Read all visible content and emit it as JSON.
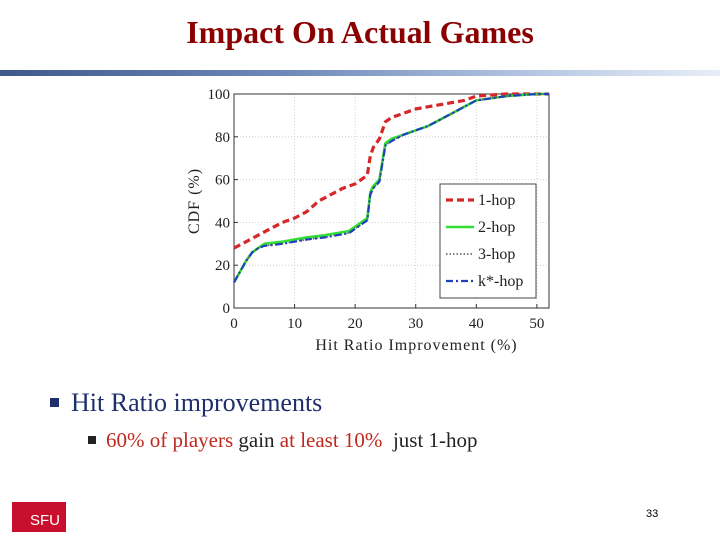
{
  "slide": {
    "title": "Impact On Actual Games",
    "bullet1": "Hit Ratio improvements",
    "bullet2": {
      "part1": "60% of players",
      "part2": " gain ",
      "part3": "at least 10%",
      "part4": "  just 1-hop"
    },
    "logo_text": "SFU",
    "page_number": "33"
  },
  "chart_data": {
    "type": "line",
    "title": "",
    "xlabel": "Hit Ratio Improvement (%)",
    "ylabel": "CDF (%)",
    "xlim": [
      0,
      52
    ],
    "ylim": [
      0,
      100
    ],
    "xticks": [
      0,
      10,
      20,
      30,
      40,
      50
    ],
    "yticks": [
      0,
      20,
      40,
      60,
      80,
      100
    ],
    "grid": true,
    "legend": "right",
    "series": [
      {
        "name": "1-hop",
        "color": "#d62728",
        "dash": "dashed",
        "x": [
          0,
          2,
          4,
          6,
          8,
          10,
          12,
          14,
          16,
          18,
          20,
          21,
          22,
          22.5,
          23,
          24,
          25,
          26,
          28,
          30,
          32,
          34,
          36,
          38,
          40,
          45,
          50,
          52
        ],
        "y": [
          28,
          31,
          34,
          37,
          40,
          42,
          45,
          50,
          53,
          56,
          58,
          60,
          62,
          71,
          75,
          79,
          87,
          89,
          91,
          93,
          94,
          95,
          96,
          97,
          99,
          100,
          100,
          100
        ]
      },
      {
        "name": "2-hop",
        "color": "#33dd33",
        "dash": "solid",
        "x": [
          0,
          1,
          2,
          3,
          4,
          5,
          8,
          10,
          12,
          15,
          17,
          19,
          20,
          21,
          22,
          22.5,
          23,
          24,
          25,
          26,
          28,
          30,
          32,
          34,
          36,
          38,
          40,
          45,
          50,
          52
        ],
        "y": [
          12,
          17,
          22,
          26,
          28,
          30,
          31,
          32,
          33,
          34,
          35,
          36,
          38,
          40,
          42,
          54,
          57,
          60,
          77,
          79,
          81,
          83,
          85,
          88,
          91,
          94,
          97,
          99,
          100,
          100
        ]
      },
      {
        "name": "3-hop",
        "color": "#555555",
        "dash": "dotted",
        "x": [
          0,
          1,
          2,
          3,
          4,
          5,
          8,
          10,
          12,
          15,
          17,
          19,
          20,
          21,
          22,
          22.5,
          23,
          24,
          25,
          26,
          28,
          30,
          32,
          34,
          36,
          38,
          40,
          45,
          50,
          52
        ],
        "y": [
          12,
          17,
          22,
          26,
          28,
          29,
          30,
          31,
          32,
          33,
          34,
          35,
          37,
          39,
          41,
          53,
          56,
          59,
          76,
          78,
          81,
          83,
          85,
          88,
          91,
          94,
          97,
          99,
          100,
          100
        ]
      },
      {
        "name": "k*-hop",
        "color": "#1f3fbf",
        "dash": "dashdot",
        "x": [
          0,
          1,
          2,
          3,
          4,
          5,
          8,
          10,
          12,
          15,
          17,
          19,
          20,
          21,
          22,
          22.5,
          23,
          24,
          25,
          26,
          28,
          30,
          32,
          34,
          36,
          38,
          40,
          45,
          50,
          52
        ],
        "y": [
          12,
          17,
          22,
          26,
          28,
          29,
          30,
          31,
          32,
          33,
          34,
          35,
          37,
          39,
          41,
          53,
          56,
          59,
          76,
          78,
          81,
          83,
          85,
          88,
          91,
          94,
          97,
          99,
          100,
          100
        ]
      }
    ]
  }
}
